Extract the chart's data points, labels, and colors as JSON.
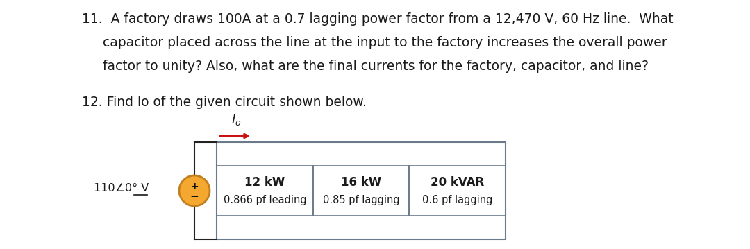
{
  "title11_line1": "11.  A factory draws 100A at a 0.7 lagging power factor from a 12,470 V, 60 Hz line.  What",
  "title11_line2": "capacitor placed across the line at the input to the factory increases the overall power",
  "title11_line3": "factor to unity? Also, what are the final currents for the factory, capacitor, and line?",
  "title12": "12. Find lo of the given circuit shown below.",
  "load1_line1": "12 kW",
  "load1_line2": "0.866 pf leading",
  "load2_line1": "16 kW",
  "load2_line2": "0.85 pf lagging",
  "load3_line1": "20 kVAR",
  "load3_line2": "0.6 pf lagging",
  "bg_color": "#ffffff",
  "text_color": "#1a1a1a",
  "box_edge_color": "#6a7a8a",
  "source_fill": "#f5a830",
  "source_edge": "#c08020",
  "arrow_color": "#cc1111",
  "font_size_body": 13.5,
  "font_size_circuit": 11.0,
  "font_size_volt": 11.5
}
